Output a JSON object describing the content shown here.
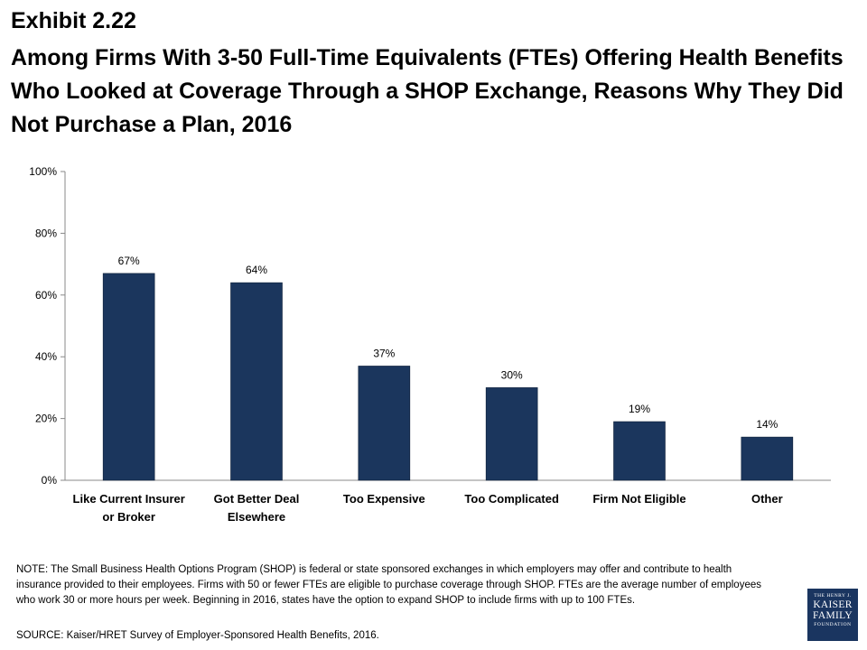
{
  "header": {
    "exhibit": "Exhibit 2.22",
    "title": "Among Firms With 3-50 Full-Time Equivalents (FTEs) Offering Health Benefits Who Looked at Coverage Through a SHOP Exchange, Reasons Why They Did Not Purchase a Plan, 2016"
  },
  "chart_data": {
    "type": "bar",
    "title": "",
    "xlabel": "",
    "ylabel": "",
    "ylim": [
      0,
      100
    ],
    "yticks": [
      "0%",
      "20%",
      "40%",
      "60%",
      "80%",
      "100%"
    ],
    "categories": [
      [
        "Like Current Insurer",
        "or Broker"
      ],
      [
        "Got Better Deal",
        "Elsewhere"
      ],
      [
        "Too Expensive"
      ],
      [
        "Too Complicated"
      ],
      [
        "Firm Not Eligible"
      ],
      [
        "Other"
      ]
    ],
    "values": [
      67,
      64,
      37,
      30,
      19,
      14
    ],
    "value_labels": [
      "67%",
      "64%",
      "37%",
      "30%",
      "19%",
      "14%"
    ],
    "bar_color": "#1b365d"
  },
  "footer": {
    "note": "NOTE: The Small Business Health Options Program (SHOP) is federal or state sponsored exchanges in which employers may offer and contribute to health insurance provided to their employees. Firms with 50 or fewer FTEs are eligible to purchase coverage through SHOP. FTEs are the average number of employees who work 30 or more hours per week. Beginning in 2016, states have the option to expand SHOP to include firms with up to 100 FTEs.",
    "source": "SOURCE: Kaiser/HRET Survey of Employer-Sponsored Health Benefits, 2016."
  },
  "logo": {
    "line1": "THE HENRY J.",
    "line2": "KAISER",
    "line3": "FAMILY",
    "line4": "FOUNDATION"
  }
}
